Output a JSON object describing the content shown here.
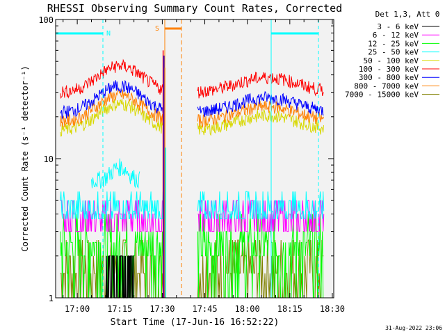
{
  "chart_data": {
    "type": "line",
    "title": "RHESSI Observing Summary Count Rates, Corrected",
    "xlabel": "Start Time (17-Jun-16 16:52:22)",
    "ylabel": "Corrected Count Rate (s⁻¹ detector⁻¹)",
    "y_scale": "log",
    "ylim": [
      1,
      100
    ],
    "y_ticks": [
      "1",
      "10",
      "100"
    ],
    "xlim": [
      "16:52:22",
      "18:30:30"
    ],
    "x_ticks": [
      "17:00",
      "17:15",
      "17:30",
      "17:45",
      "18:00",
      "18:15",
      "18:30"
    ],
    "legend_title": "Det 1,3, Att 0",
    "legend_position": "right",
    "series": [
      {
        "name": "3 - 6 keV",
        "color": "#000000"
      },
      {
        "name": "6 - 12 keV",
        "color": "#ff00ff"
      },
      {
        "name": "12 - 25 keV",
        "color": "#00ff00"
      },
      {
        "name": "25 - 50 keV",
        "color": "#00ffff"
      },
      {
        "name": "50 - 100 keV",
        "color": "#d8d800"
      },
      {
        "name": "100 - 300 keV",
        "color": "#ff0000"
      },
      {
        "name": "300 - 800 keV",
        "color": "#0000ff"
      },
      {
        "name": "800 - 7000 keV",
        "color": "#ff8000"
      },
      {
        "name": "7000 - 15000 keV",
        "color": "#808000"
      }
    ],
    "annotations": [
      {
        "label": "N",
        "color": "#00ffff"
      },
      {
        "label": "S",
        "color": "#ff8000"
      }
    ]
  },
  "timestamp": "31-Aug-2022 23:06"
}
